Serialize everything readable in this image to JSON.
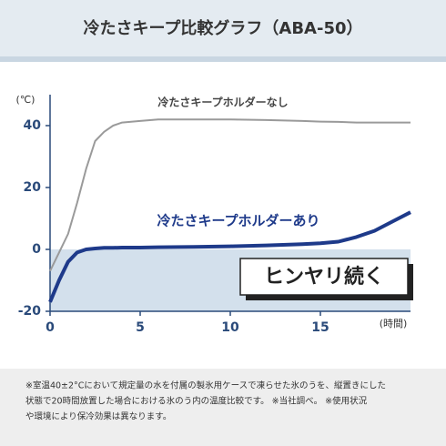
{
  "chart_data": {
    "type": "line",
    "title": "冷たさキープ比較グラフ（ABA-50）",
    "y_label": "(℃)",
    "x_label": "(時間)",
    "x": [
      0,
      0.5,
      1,
      1.5,
      2,
      2.5,
      3,
      3.5,
      4,
      5,
      6,
      8,
      10,
      12,
      14,
      15,
      16,
      17,
      18,
      19,
      20
    ],
    "series": [
      {
        "name": "冷たさキープホルダーなし",
        "color": "#9a9a9a",
        "values": [
          -7,
          -1,
          5,
          15,
          26,
          35,
          38,
          40,
          41,
          41.5,
          42,
          42,
          42,
          41.8,
          41.5,
          41.3,
          41.2,
          41,
          41,
          41,
          41
        ]
      },
      {
        "name": "冷たさキープホルダーあり",
        "color": "#1e3a8a",
        "values": [
          -17,
          -10,
          -4,
          -1,
          0,
          0.3,
          0.5,
          0.5,
          0.6,
          0.6,
          0.7,
          0.8,
          1,
          1.3,
          1.7,
          2,
          2.5,
          4,
          6,
          9,
          12
        ]
      }
    ],
    "xlim": [
      0,
      20
    ],
    "ylim": [
      -20,
      50
    ],
    "xticks": [
      0,
      5,
      10,
      15
    ],
    "yticks": [
      40,
      20,
      0,
      -20
    ],
    "grid": false,
    "annotation": "ヒンヤリ続く",
    "note": [
      "※室温40±2°Cにおいて規定量の水を付属の製氷用ケースで凍らせた氷のうを、縦置きにした",
      "状態で20時間放置した場合における氷のう内の温度比較です。 ※当社調べ。 ※使用状況",
      "や環境により保冷効果は異なります。"
    ]
  }
}
